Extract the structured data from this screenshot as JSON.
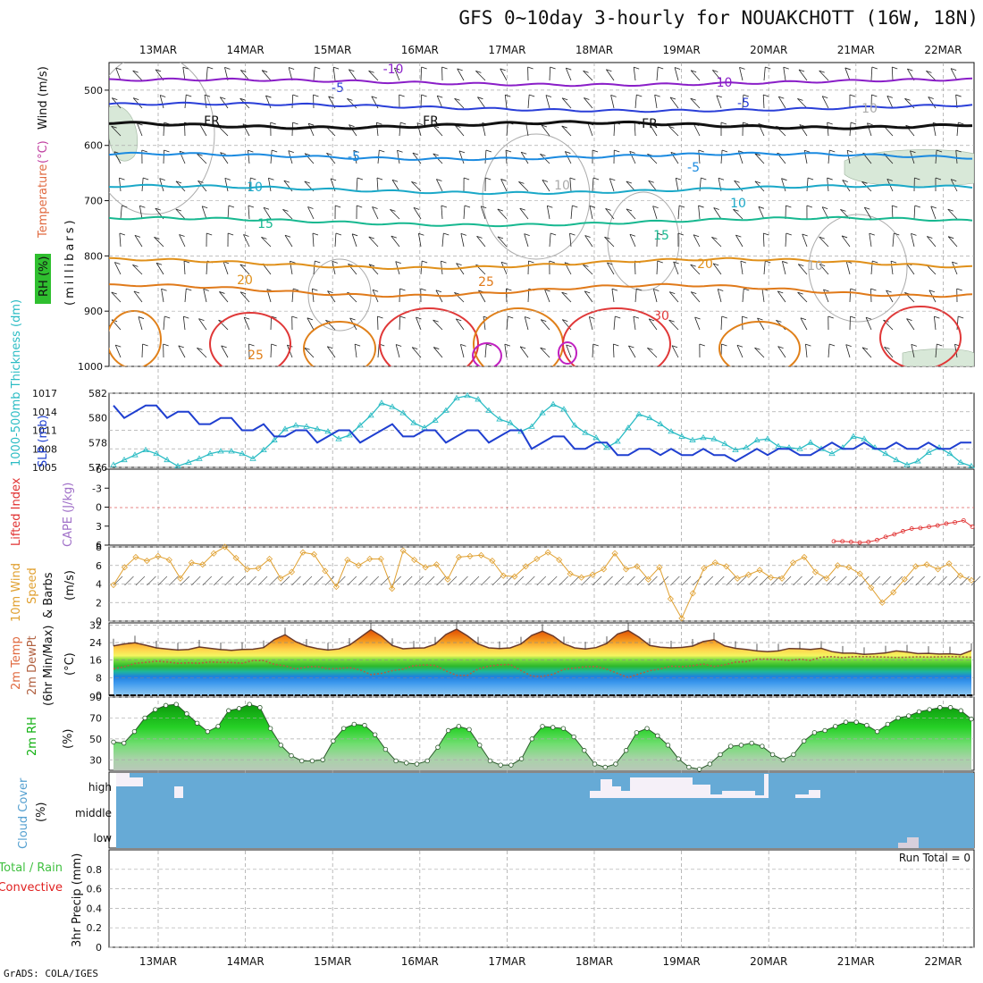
{
  "title": "GFS 0~10day 3-hourly for NOUAKCHOTT (16W, 18N)",
  "footer": "GrADS: COLA/IGES",
  "colors": {
    "wind_temp_rh": "#32cd32",
    "slp": "#1f3fd0",
    "thickness": "#2bbcc4",
    "lifted_index": "#e03030",
    "cape": "#a070c8",
    "wind10m": "#e0a030",
    "temp2m": "#f08020",
    "rh2m": "#10b010",
    "cloud": "#66aad6",
    "precip_total": "#40c040",
    "precip_convective": "#e02020"
  },
  "chart_data": [
    {
      "type": "line",
      "panel": "upper-air",
      "x": [
        "13MAR",
        "14MAR",
        "15MAR",
        "16MAR",
        "17MAR",
        "18MAR",
        "19MAR",
        "20MAR",
        "21MAR",
        "22MAR"
      ],
      "ylabel_parts": [
        "RH (%)",
        "Temperature",
        "(°C)",
        "Wind (m/s)",
        "(millibars)"
      ],
      "yticks": [
        "500",
        "600",
        "700",
        "800",
        "900",
        "1000"
      ],
      "ylim": [
        1000,
        450
      ],
      "contour_labels": [
        "-10",
        "-10",
        "-5",
        "-5",
        "FR",
        "FR",
        "FR",
        "-5",
        "-5",
        "10",
        "10",
        "15",
        "15",
        "20",
        "20",
        "25",
        "30",
        "25",
        "10",
        "10",
        "10"
      ]
    },
    {
      "type": "line",
      "panel": "slp-thickness",
      "ylabel_left": "1000-500mb Thickness (dm)",
      "ylabel_right": "SLP (mb)",
      "yticks_left": [
        "576",
        "578",
        "580",
        "582"
      ],
      "yticks_right": [
        "1005",
        "1008",
        "1011",
        "1014",
        "1017"
      ],
      "series": [
        {
          "name": "SLP (mb)",
          "values": [
            1015,
            1013,
            1014,
            1015,
            1015,
            1013,
            1014,
            1014,
            1012,
            1012,
            1013,
            1013,
            1011,
            1011,
            1012,
            1010,
            1010,
            1011,
            1011,
            1009,
            1010,
            1011,
            1011,
            1009,
            1010,
            1011,
            1012,
            1010,
            1010,
            1011,
            1011,
            1009,
            1010,
            1011,
            1011,
            1009,
            1010,
            1011,
            1011,
            1008,
            1009,
            1010,
            1010,
            1008,
            1008,
            1009,
            1009,
            1007,
            1007,
            1008,
            1008,
            1007,
            1008,
            1007,
            1007,
            1008,
            1007,
            1007,
            1006,
            1007,
            1008,
            1007,
            1008,
            1008,
            1007,
            1007,
            1008,
            1009,
            1008,
            1008,
            1009,
            1008,
            1008,
            1009,
            1008,
            1008,
            1009,
            1008,
            1008,
            1009,
            1009
          ]
        },
        {
          "name": "1000-500mb Thickness (dm)",
          "values": [
            576.2,
            576.6,
            577,
            577.4,
            577.1,
            576.6,
            576.1,
            576.4,
            576.7,
            577.1,
            577.3,
            577.3,
            577.1,
            576.7,
            577.4,
            578.2,
            579.1,
            579.4,
            579.3,
            579.1,
            578.9,
            578.3,
            578.6,
            579.4,
            580.2,
            581.2,
            580.9,
            580.4,
            579.6,
            579.2,
            579.8,
            580.6,
            581.6,
            581.8,
            581.5,
            580.6,
            579.9,
            579.6,
            578.9,
            579.3,
            580.4,
            581.1,
            580.7,
            579.4,
            578.8,
            578.4,
            577.6,
            578.1,
            579.2,
            580.3,
            580,
            579.5,
            578.9,
            578.5,
            578.2,
            578.4,
            578.3,
            577.9,
            577.4,
            577.6,
            578.2,
            578.3,
            577.7,
            577.6,
            577.5,
            578,
            577.5,
            577.1,
            577.6,
            578.5,
            578.3,
            577.6,
            577.1,
            576.6,
            576.2,
            576.5,
            577.2,
            577.6,
            577.1,
            576.4,
            576.1
          ]
        }
      ]
    },
    {
      "type": "line",
      "panel": "stability",
      "ylabel_left": "Lifted Index",
      "ylabel_right": "CAPE (J/kg)",
      "yticks": [
        "-6",
        "-3",
        "0",
        "3",
        "6"
      ],
      "ylim": [
        6,
        -6
      ],
      "series": [
        {
          "name": "Lifted Index",
          "values": [
            5.4,
            5.4,
            5.5,
            5.6,
            5.5,
            5.2,
            4.7,
            4.3,
            3.8,
            3.4,
            3.3,
            3.1,
            2.9,
            2.6,
            2.4,
            2.1,
            3.1
          ]
        }
      ]
    },
    {
      "type": "line",
      "panel": "wind10m",
      "ylabel_parts": [
        "10m Wind",
        "Speed",
        "& Barbs",
        "(m/s)"
      ],
      "yticks": [
        "0",
        "2",
        "4",
        "6",
        "8"
      ],
      "ylim": [
        0,
        8
      ],
      "series": [
        {
          "name": "10m Wind Speed (m/s)",
          "values": [
            3.9,
            5.8,
            6.9,
            6.5,
            7,
            6.6,
            4.6,
            6.3,
            6.1,
            7.3,
            8,
            6.8,
            5.6,
            5.7,
            6.7,
            4.6,
            5.3,
            7.4,
            7.2,
            5.4,
            3.7,
            6.6,
            6,
            6.7,
            6.7,
            3.5,
            7.6,
            6.6,
            5.8,
            6.1,
            4.5,
            6.9,
            7,
            7.1,
            6.5,
            4.9,
            4.8,
            5.9,
            6.7,
            7.4,
            6.6,
            5.1,
            4.7,
            5,
            5.6,
            7.3,
            5.6,
            5.9,
            4.5,
            5.8,
            2.4,
            0.3,
            3,
            5.7,
            6.3,
            5.9,
            4.6,
            5,
            5.5,
            4.7,
            4.6,
            6.3,
            6.9,
            5.3,
            4.6,
            6,
            5.8,
            5.1,
            3.6,
            2,
            3.1,
            4.5,
            5.9,
            6.1,
            5.6,
            6.2,
            4.9,
            4.4
          ]
        }
      ]
    },
    {
      "type": "area",
      "panel": "temp2m",
      "ylabel_parts": [
        "2m Temp",
        "2m DewPt",
        "(6hr Min/Max)",
        "(°C)"
      ],
      "yticks": [
        "0",
        "8",
        "16",
        "24",
        "32"
      ],
      "ylim": [
        0,
        32
      ],
      "series": [
        {
          "name": "2m Temp (°C)",
          "values": [
            22.5,
            23.4,
            23.9,
            22.8,
            21.6,
            21.1,
            20.6,
            20.9,
            22,
            21.4,
            20.8,
            20.5,
            20.9,
            21,
            21.7,
            25.4,
            27.6,
            24.4,
            22.4,
            21.3,
            20.6,
            21.1,
            22.8,
            26.3,
            29.9,
            26.9,
            22.7,
            21.2,
            21.5,
            21.6,
            23.3,
            27.7,
            30.1,
            27.1,
            23.4,
            21.6,
            21.3,
            21.6,
            23.4,
            27.3,
            29.2,
            27,
            23.5,
            21.6,
            21.1,
            21.7,
            23.6,
            27.9,
            29.5,
            26.5,
            22.7,
            21.9,
            21.6,
            21.8,
            22.4,
            24.5,
            25.3,
            22.5,
            21.4,
            20.9,
            20.2,
            19.9,
            20.2,
            21.3,
            21.2,
            20.9,
            21.4,
            19.9,
            19.2,
            19.2,
            18.6,
            18.9,
            19.3,
            20.2,
            19.7,
            19,
            19.1,
            18.8,
            18.9,
            18.5,
            20.4
          ]
        },
        {
          "name": "2m DewPt (°C)",
          "values": [
            12,
            13,
            14.5,
            15,
            15.5,
            15.2,
            14.6,
            14.8,
            14.6,
            15.2,
            15,
            14.9,
            14.6,
            15.8,
            15.8,
            14.1,
            13.4,
            11.9,
            12.9,
            13.1,
            12,
            12.2,
            12.6,
            11.6,
            9.4,
            10,
            11.2,
            11.9,
            13.5,
            13.8,
            13.6,
            11.1,
            9.1,
            9,
            12,
            13.3,
            13.9,
            14,
            11.3,
            8.7,
            8.6,
            9.6,
            11.8,
            12.4,
            13,
            13.1,
            11.9,
            10,
            8.1,
            9.7,
            11.2,
            12,
            13.3,
            13,
            13.5,
            14.2,
            13.1,
            13.9,
            15.1,
            15.3,
            16.5,
            16.5,
            16.3,
            15.9,
            16.4,
            15.9,
            17.4,
            17.6,
            17.1,
            17.6,
            17.6,
            17.5,
            17.4,
            17.2,
            17.3,
            17.5,
            17.4,
            17.5,
            17.6,
            17.5,
            17.3
          ]
        }
      ]
    },
    {
      "type": "area",
      "panel": "rh2m",
      "ylabel_parts": [
        "2m RH",
        "(%)"
      ],
      "yticks": [
        "30",
        "50",
        "70",
        "90"
      ],
      "ylim": [
        20,
        90
      ],
      "series": [
        {
          "name": "2m RH (%)",
          "values": [
            47,
            46,
            57,
            70,
            78,
            82,
            83,
            74,
            65,
            57,
            62,
            77,
            79,
            83,
            80,
            60,
            44,
            34,
            29,
            29,
            30,
            48,
            60,
            64,
            63,
            54,
            40,
            29,
            27,
            26,
            29,
            42,
            58,
            62,
            59,
            44,
            29,
            25,
            25,
            31,
            50,
            62,
            61,
            60,
            52,
            39,
            26,
            23,
            26,
            39,
            56,
            60,
            53,
            44,
            31,
            23,
            21,
            26,
            35,
            43,
            44,
            46,
            43,
            35,
            30,
            35,
            48,
            56,
            58,
            62,
            66,
            66,
            63,
            57,
            64,
            70,
            72,
            76,
            78,
            80,
            80,
            77,
            69
          ]
        }
      ]
    },
    {
      "type": "heatmap",
      "panel": "cloud-cover",
      "ylabel": "Cloud Cover (%)",
      "rows": [
        "high",
        "middle",
        "low"
      ]
    },
    {
      "type": "bar",
      "panel": "precip",
      "ylabel_parts": [
        "Total / Rain",
        "Convective",
        "3hr Precip (mm)"
      ],
      "yticks": [
        "0",
        "0.2",
        "0.4",
        "0.6",
        "0.8"
      ],
      "ylim": [
        0,
        1
      ],
      "run_total_label": "Run Total = 0",
      "series": [
        {
          "name": "Total / Rain",
          "values": []
        },
        {
          "name": "Convective",
          "values": []
        }
      ]
    }
  ]
}
